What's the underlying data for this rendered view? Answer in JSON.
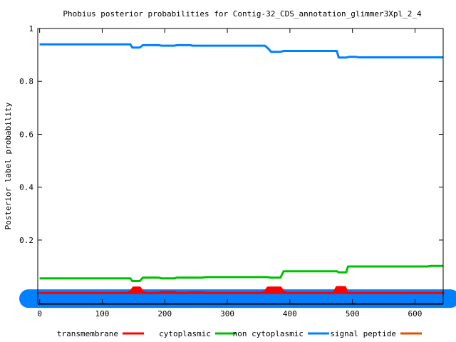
{
  "chart_data": {
    "type": "line",
    "title": "Phobius posterior probabilities for Contig-32_CDS_annotation_glimmer3Xpl_2_4",
    "xlabel": "",
    "ylabel": "Posterior label probability",
    "xlim": [
      -3,
      645
    ],
    "ylim": [
      -0.04,
      1.0
    ],
    "x_ticks": [
      0,
      100,
      200,
      300,
      400,
      500,
      600
    ],
    "y_ticks": [
      0.2,
      0.4,
      0.6,
      0.8,
      1.0
    ],
    "y_tick_labels": [
      "0.2",
      "0.4",
      "0.6",
      "0.8",
      "1"
    ],
    "grid": false,
    "legend_position": "bottom",
    "series": [
      {
        "name": "transmembrane",
        "color": "#ff0000",
        "points": [
          [
            0,
            0
          ],
          [
            140,
            0
          ],
          [
            145,
            0.005
          ],
          [
            150,
            0.02
          ],
          [
            160,
            0.02
          ],
          [
            165,
            0.005
          ],
          [
            170,
            0
          ],
          [
            190,
            0
          ],
          [
            195,
            0.004
          ],
          [
            215,
            0.004
          ],
          [
            220,
            0
          ],
          [
            235,
            0
          ],
          [
            240,
            0.002
          ],
          [
            260,
            0.002
          ],
          [
            265,
            0
          ],
          [
            355,
            0
          ],
          [
            360,
            0.005
          ],
          [
            365,
            0.02
          ],
          [
            385,
            0.02
          ],
          [
            390,
            0.005
          ],
          [
            395,
            0
          ],
          [
            470,
            0
          ],
          [
            475,
            0.022
          ],
          [
            488,
            0.022
          ],
          [
            492,
            0
          ],
          [
            645,
            0
          ]
        ]
      },
      {
        "name": "cytoplasmic",
        "color": "#00c000",
        "points": [
          [
            0,
            0.055
          ],
          [
            145,
            0.055
          ],
          [
            148,
            0.045
          ],
          [
            160,
            0.045
          ],
          [
            165,
            0.058
          ],
          [
            190,
            0.058
          ],
          [
            195,
            0.055
          ],
          [
            215,
            0.055
          ],
          [
            220,
            0.058
          ],
          [
            260,
            0.058
          ],
          [
            265,
            0.06
          ],
          [
            365,
            0.06
          ],
          [
            368,
            0.058
          ],
          [
            385,
            0.058
          ],
          [
            390,
            0.082
          ],
          [
            475,
            0.082
          ],
          [
            478,
            0.078
          ],
          [
            490,
            0.078
          ],
          [
            493,
            0.1
          ],
          [
            620,
            0.1
          ],
          [
            625,
            0.102
          ],
          [
            645,
            0.102
          ]
        ]
      },
      {
        "name": "non cytoplasmic",
        "color": "#0080ff",
        "points": [
          [
            0,
            0.94
          ],
          [
            145,
            0.94
          ],
          [
            148,
            0.928
          ],
          [
            160,
            0.928
          ],
          [
            165,
            0.937
          ],
          [
            190,
            0.937
          ],
          [
            195,
            0.935
          ],
          [
            215,
            0.935
          ],
          [
            220,
            0.937
          ],
          [
            240,
            0.937
          ],
          [
            245,
            0.935
          ],
          [
            360,
            0.935
          ],
          [
            365,
            0.925
          ],
          [
            370,
            0.912
          ],
          [
            385,
            0.912
          ],
          [
            390,
            0.915
          ],
          [
            475,
            0.915
          ],
          [
            478,
            0.89
          ],
          [
            490,
            0.89
          ],
          [
            495,
            0.893
          ],
          [
            505,
            0.893
          ],
          [
            510,
            0.891
          ],
          [
            645,
            0.891
          ]
        ]
      },
      {
        "name": "signal peptide",
        "color": "#e05000",
        "points": [
          [
            0,
            0
          ],
          [
            645,
            0
          ]
        ]
      }
    ]
  }
}
